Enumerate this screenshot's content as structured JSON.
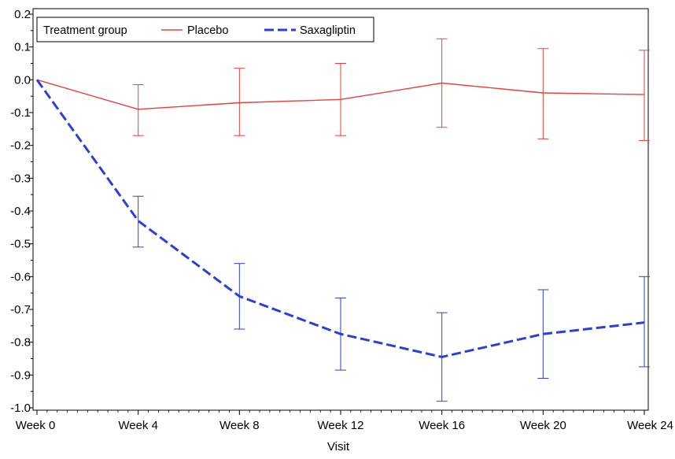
{
  "chart_data": {
    "type": "line",
    "title": "",
    "xlabel": "Visit",
    "ylabel": "",
    "categories": [
      "Week 0",
      "Week 4",
      "Week 8",
      "Week 12",
      "Week 16",
      "Week 20",
      "Week 24"
    ],
    "ylim": [
      -1.0,
      0.2
    ],
    "yticks": [
      "0.2",
      "0.1",
      "0.0",
      "-0.1",
      "-0.2",
      "-0.3",
      "-0.4",
      "-0.5",
      "-0.6",
      "-0.7",
      "-0.8",
      "-0.9",
      "-1.0"
    ],
    "yticks_values": [
      0.2,
      0.1,
      0.0,
      -0.1,
      -0.2,
      -0.3,
      -0.4,
      -0.5,
      -0.6,
      -0.7,
      -0.8,
      -0.9,
      -1.0
    ],
    "grid": false,
    "legend": {
      "title": "Treatment group",
      "placement": "top-left"
    },
    "series": [
      {
        "name": "Placebo",
        "color": "#e8403a",
        "dash": "solid",
        "values": [
          0.0,
          -0.09,
          -0.07,
          -0.06,
          -0.01,
          -0.04,
          -0.045
        ],
        "lower": [
          null,
          -0.17,
          -0.17,
          -0.17,
          -0.145,
          -0.18,
          -0.185
        ],
        "upper": [
          null,
          -0.015,
          0.035,
          0.05,
          0.125,
          0.095,
          0.09
        ]
      },
      {
        "name": "Saxagliptin",
        "color": "#2a3fd9",
        "dash": "dashed",
        "values": [
          0.0,
          -0.43,
          -0.66,
          -0.775,
          -0.845,
          -0.775,
          -0.74
        ],
        "lower": [
          null,
          -0.51,
          -0.76,
          -0.885,
          -0.98,
          -0.91,
          -0.875
        ],
        "upper": [
          null,
          -0.355,
          -0.56,
          -0.665,
          -0.71,
          -0.64,
          -0.6
        ]
      }
    ]
  }
}
